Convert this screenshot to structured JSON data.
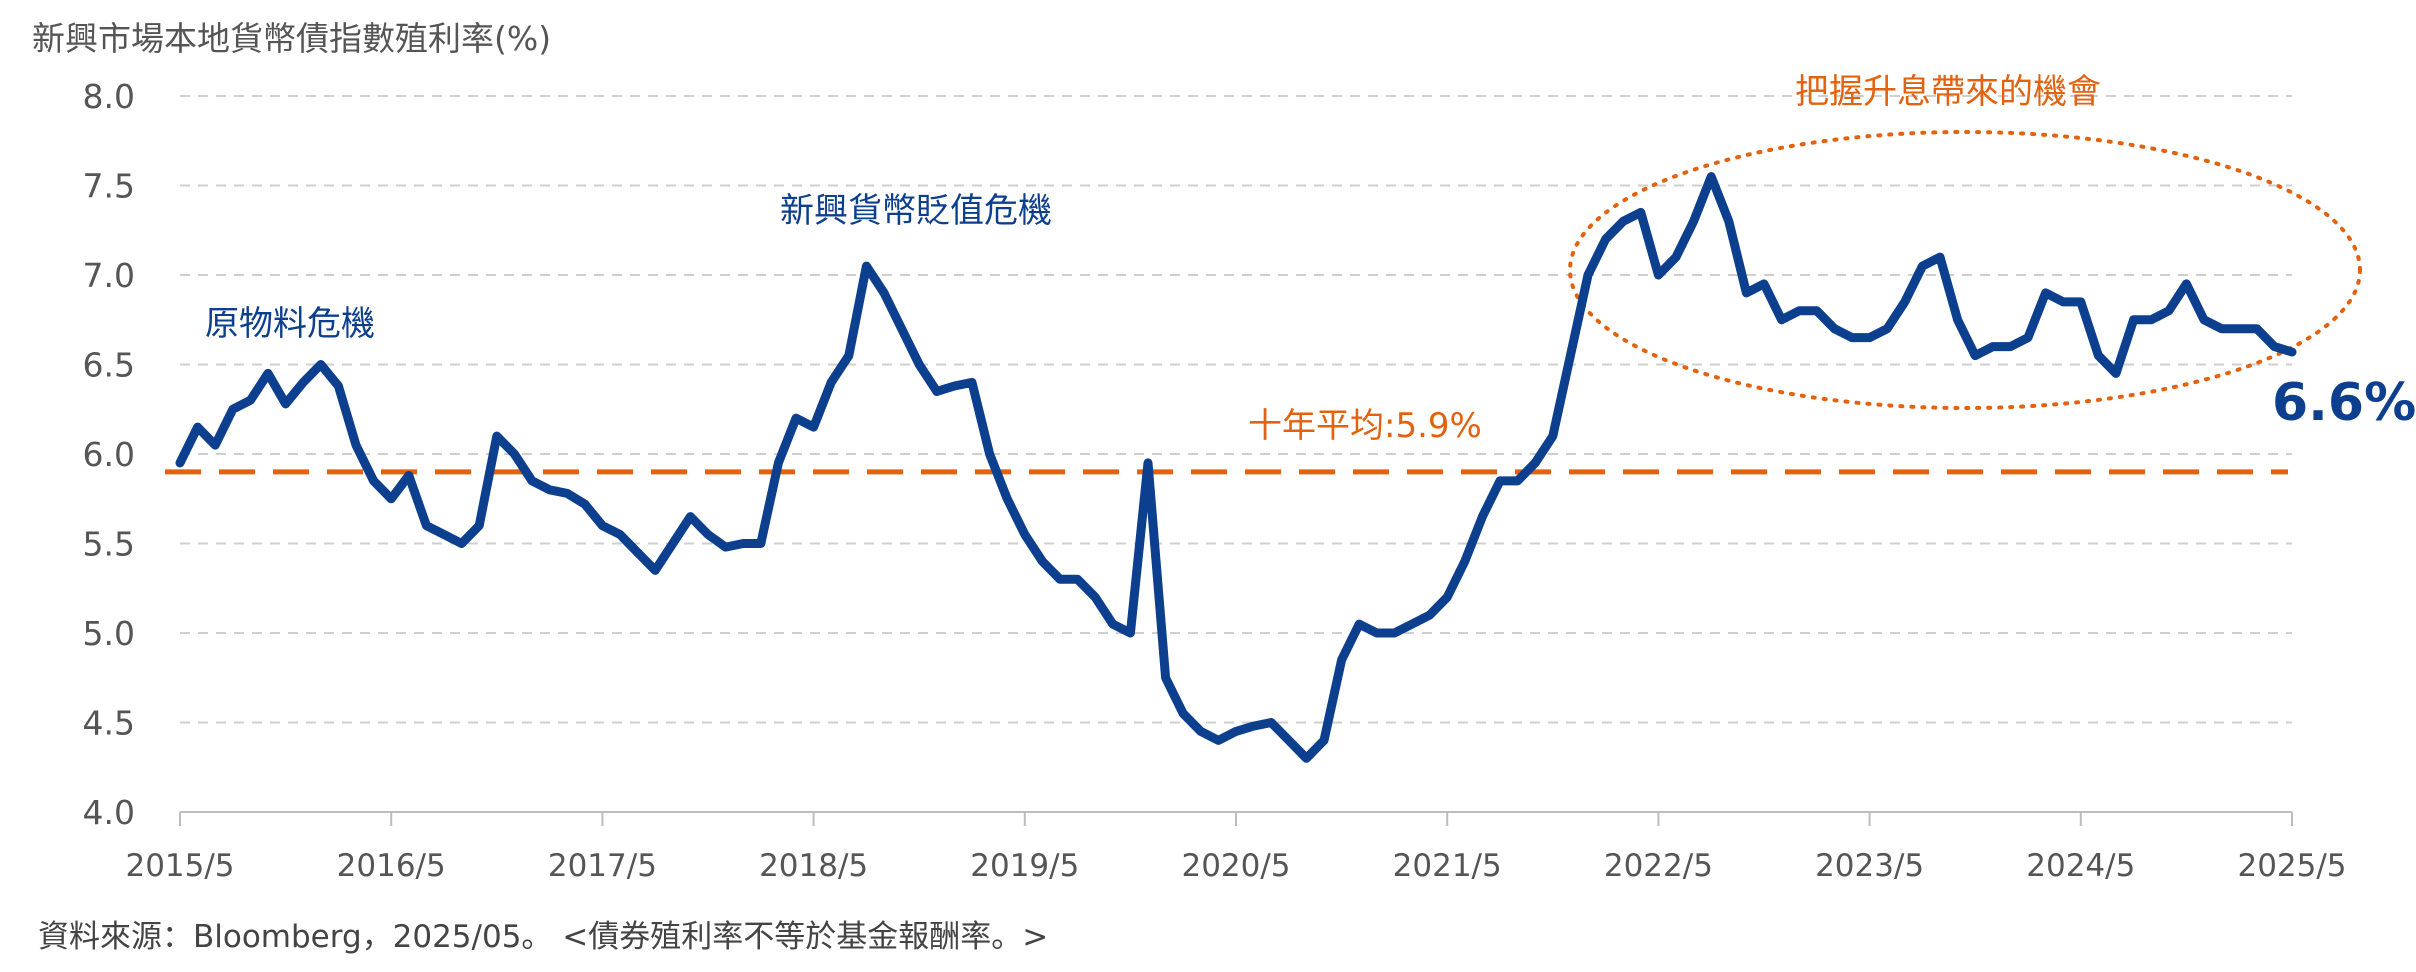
{
  "chart_data": {
    "type": "line",
    "ylabel": "新興市場本地貨幣債指數殖利率(%)",
    "ylim": [
      4.0,
      8.0
    ],
    "yticks": [
      "8.0",
      "7.5",
      "7.0",
      "6.5",
      "6.0",
      "5.5",
      "5.0",
      "4.5",
      "4.0"
    ],
    "xlim": [
      "2015/5",
      "2025/5"
    ],
    "xticks": [
      "2015/5",
      "2016/5",
      "2017/5",
      "2018/5",
      "2019/5",
      "2020/5",
      "2021/5",
      "2022/5",
      "2023/5",
      "2024/5",
      "2025/5"
    ],
    "grid": true,
    "series": [
      {
        "color": "#0d3f8f",
        "x": [
          "2015/05",
          "2015/06",
          "2015/07",
          "2015/08",
          "2015/09",
          "2015/10",
          "2015/11",
          "2015/12",
          "2016/01",
          "2016/02",
          "2016/03",
          "2016/04",
          "2016/05",
          "2016/06",
          "2016/07",
          "2016/08",
          "2016/09",
          "2016/10",
          "2016/11",
          "2016/12",
          "2017/01",
          "2017/02",
          "2017/03",
          "2017/04",
          "2017/05",
          "2017/06",
          "2017/07",
          "2017/08",
          "2017/09",
          "2017/10",
          "2017/11",
          "2017/12",
          "2018/01",
          "2018/02",
          "2018/03",
          "2018/04",
          "2018/05",
          "2018/06",
          "2018/07",
          "2018/08",
          "2018/09",
          "2018/10",
          "2018/11",
          "2018/12",
          "2019/01",
          "2019/02",
          "2019/03",
          "2019/04",
          "2019/05",
          "2019/06",
          "2019/07",
          "2019/08",
          "2019/09",
          "2019/10",
          "2019/11",
          "2019/12",
          "2020/01",
          "2020/02",
          "2020/03",
          "2020/04",
          "2020/05",
          "2020/06",
          "2020/07",
          "2020/08",
          "2020/09",
          "2020/10",
          "2020/11",
          "2020/12",
          "2021/01",
          "2021/02",
          "2021/03",
          "2021/04",
          "2021/05",
          "2021/06",
          "2021/07",
          "2021/08",
          "2021/09",
          "2021/10",
          "2021/11",
          "2021/12",
          "2022/01",
          "2022/02",
          "2022/03",
          "2022/04",
          "2022/05",
          "2022/06",
          "2022/07",
          "2022/08",
          "2022/09",
          "2022/10",
          "2022/11",
          "2022/12",
          "2023/01",
          "2023/02",
          "2023/03",
          "2023/04",
          "2023/05",
          "2023/06",
          "2023/07",
          "2023/08",
          "2023/09",
          "2023/10",
          "2023/11",
          "2023/12",
          "2024/01",
          "2024/02",
          "2024/03",
          "2024/04",
          "2024/05",
          "2024/06",
          "2024/07",
          "2024/08",
          "2024/09",
          "2024/10",
          "2024/11",
          "2024/12",
          "2025/01",
          "2025/02",
          "2025/03",
          "2025/04",
          "2025/05"
        ],
        "values": [
          5.95,
          6.15,
          6.05,
          6.25,
          6.3,
          6.45,
          6.28,
          6.4,
          6.5,
          6.38,
          6.05,
          5.85,
          5.75,
          5.88,
          5.6,
          5.55,
          5.5,
          5.6,
          6.1,
          6.0,
          5.85,
          5.8,
          5.78,
          5.72,
          5.6,
          5.55,
          5.45,
          5.35,
          5.5,
          5.65,
          5.55,
          5.48,
          5.5,
          5.5,
          5.95,
          6.2,
          6.15,
          6.4,
          6.55,
          7.05,
          6.9,
          6.7,
          6.5,
          6.35,
          6.38,
          6.4,
          6.0,
          5.75,
          5.55,
          5.4,
          5.3,
          5.3,
          5.2,
          5.05,
          5.0,
          5.95,
          4.75,
          4.55,
          4.45,
          4.4,
          4.45,
          4.48,
          4.5,
          4.4,
          4.3,
          4.4,
          4.85,
          5.05,
          5.0,
          5.0,
          5.05,
          5.1,
          5.2,
          5.4,
          5.65,
          5.85,
          5.85,
          5.95,
          6.1,
          6.55,
          7.0,
          7.2,
          7.3,
          7.35,
          7.0,
          7.1,
          7.3,
          7.55,
          7.3,
          6.9,
          6.95,
          6.75,
          6.8,
          6.8,
          6.7,
          6.65,
          6.65,
          6.7,
          6.85,
          7.05,
          7.1,
          6.75,
          6.55,
          6.6,
          6.6,
          6.65,
          6.9,
          6.85,
          6.85,
          6.55,
          6.45,
          6.75,
          6.75,
          6.8,
          6.95,
          6.75,
          6.7,
          6.7,
          6.7,
          6.6,
          6.57
        ]
      }
    ],
    "reference_line": {
      "value": 5.9,
      "label": "十年平均:5.9%",
      "color": "#e2620f"
    },
    "annotations": [
      {
        "text": "原物料危機",
        "color": "#0d3f8f"
      },
      {
        "text": "新興貨幣貶值危機",
        "color": "#0d3f8f"
      },
      {
        "text": "把握升息帶來的機會",
        "color": "#e2620f"
      }
    ],
    "last_value_label": "6.6%"
  },
  "footer": {
    "source": "資料來源：Bloomberg，2025/05。 <債券殖利率不等於基金報酬率。>"
  }
}
